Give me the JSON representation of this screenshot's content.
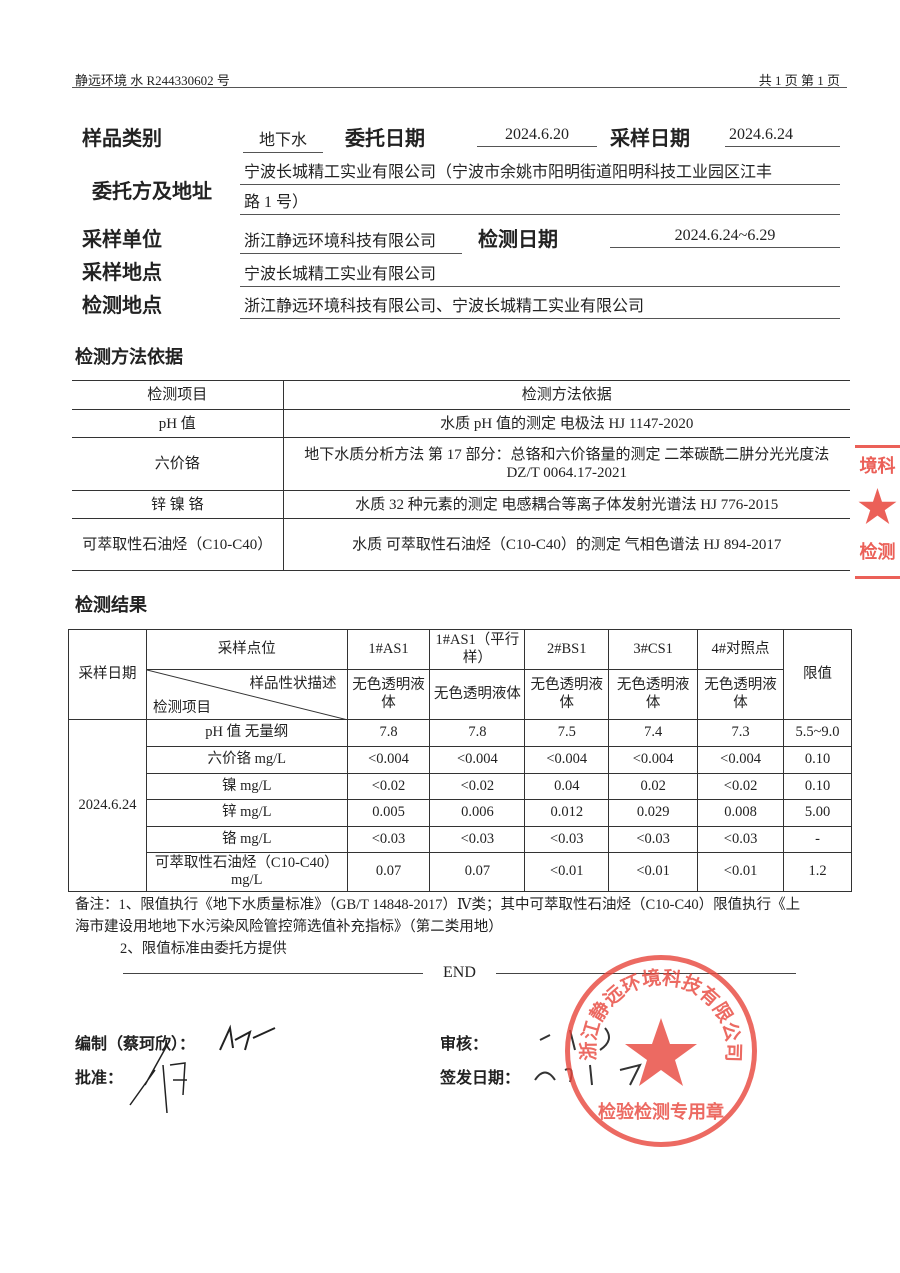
{
  "header": {
    "report_no": "静远环境 水 R244330602 号",
    "pages": "共 1 页 第 1 页"
  },
  "info": {
    "sample_type_label": "样品类别",
    "sample_type": "地下水",
    "commission_date_label": "委托日期",
    "commission_date": "2024.6.20",
    "sampling_date_label": "采样日期",
    "sampling_date": "2024.6.24",
    "client_label": "委托方及地址",
    "client_line1": "宁波长城精工实业有限公司（宁波市余姚市阳明街道阳明科技工业园区江丰",
    "client_line2": "路 1 号）",
    "sampler_label": "采样单位",
    "sampler": "浙江静远环境科技有限公司",
    "test_date_label": "检测日期",
    "test_date": "2024.6.24~6.29",
    "sampling_site_label": "采样地点",
    "sampling_site": "宁波长城精工实业有限公司",
    "test_site_label": "检测地点",
    "test_site": "浙江静远环境科技有限公司、宁波长城精工实业有限公司"
  },
  "methods": {
    "title": "检测方法依据",
    "headers": [
      "检测项目",
      "检测方法依据"
    ],
    "rows": [
      {
        "item": "pH 值",
        "method": "水质 pH 值的测定 电极法 HJ 1147-2020"
      },
      {
        "item": "六价铬",
        "method": "地下水质分析方法 第 17 部分：总铬和六价铬量的测定 二苯碳酰二肼分光光度法 DZ/T 0064.17-2021"
      },
      {
        "item": "锌 镍 铬",
        "method": "水质 32 种元素的测定 电感耦合等离子体发射光谱法 HJ 776-2015"
      },
      {
        "item": "可萃取性石油烃（C10-C40）",
        "method": "水质 可萃取性石油烃（C10-C40）的测定 气相色谱法 HJ 894-2017"
      }
    ]
  },
  "results": {
    "title": "检测结果",
    "date_header": "采样日期",
    "site_header": "采样点位",
    "desc_header": "样品性状描述",
    "item_header": "检测项目",
    "limit_header": "限值",
    "sites": [
      "1#AS1",
      "1#AS1（平行样）",
      "2#BS1",
      "3#CS1",
      "4#对照点"
    ],
    "descriptions": [
      "无色透明液体",
      "无色透明液体",
      "无色透明液体",
      "无色透明液体",
      "无色透明液体"
    ],
    "date": "2024.6.24",
    "rows": [
      {
        "item": "pH 值 无量纲",
        "values": [
          "7.8",
          "7.8",
          "7.5",
          "7.4",
          "7.3"
        ],
        "limit": "5.5~9.0"
      },
      {
        "item": "六价铬 mg/L",
        "values": [
          "<0.004",
          "<0.004",
          "<0.004",
          "<0.004",
          "<0.004"
        ],
        "limit": "0.10"
      },
      {
        "item": "镍 mg/L",
        "values": [
          "<0.02",
          "<0.02",
          "0.04",
          "0.02",
          "<0.02"
        ],
        "limit": "0.10"
      },
      {
        "item": "锌 mg/L",
        "values": [
          "0.005",
          "0.006",
          "0.012",
          "0.029",
          "0.008"
        ],
        "limit": "5.00"
      },
      {
        "item": "铬 mg/L",
        "values": [
          "<0.03",
          "<0.03",
          "<0.03",
          "<0.03",
          "<0.03"
        ],
        "limit": "-"
      },
      {
        "item": "可萃取性石油烃（C10-C40）mg/L",
        "values": [
          "0.07",
          "0.07",
          "<0.01",
          "<0.01",
          "<0.01"
        ],
        "limit": "1.2"
      }
    ]
  },
  "notes": {
    "line1": "备注：1、限值执行《地下水质量标准》（GB/T 14848-2017）Ⅳ类；其中可萃取性石油烃（C10-C40）限值执行《上",
    "line2": "海市建设用地地下水污染风险管控筛选值补充指标》（第二类用地）",
    "line3": "2、限值标准由委托方提供",
    "end": "END"
  },
  "signatures": {
    "compiled": "编制（蔡珂欣）：",
    "approved": "批准：",
    "reviewed": "审核：",
    "issue_date": "签发日期："
  },
  "stamp": {
    "text": "浙江静远环境科技有限公司",
    "bottom": "检验检测专用章",
    "color": "#e8453c"
  },
  "side_stamp": {
    "top": "境科",
    "bottom": "检测"
  }
}
